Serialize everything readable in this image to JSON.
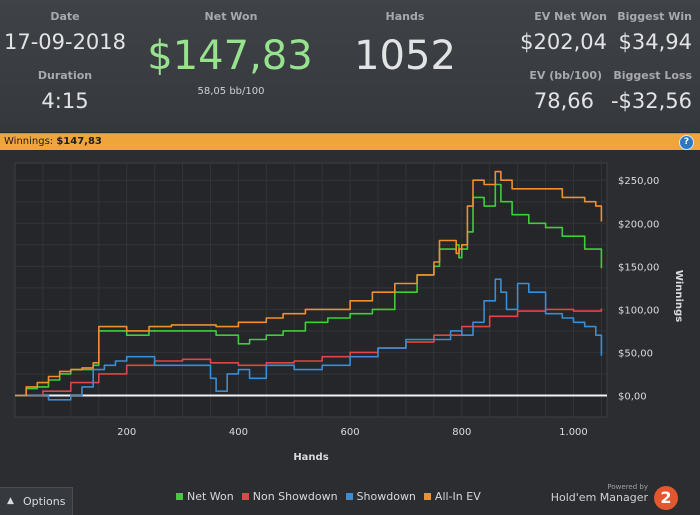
{
  "stats": {
    "date_label": "Date",
    "date_value": "17-09-2018",
    "duration_label": "Duration",
    "duration_value": "4:15",
    "netwon_label": "Net Won",
    "netwon_value": "$147,83",
    "netwon_sub": "58,05 bb/100",
    "hands_label": "Hands",
    "hands_value": "1052",
    "evnet_label": "EV Net Won",
    "evnet_value": "$202,04",
    "evbb_label": "EV (bb/100)",
    "evbb_value": "78,66",
    "bigwin_label": "Biggest Win",
    "bigwin_value": "$34,94",
    "bigloss_label": "Biggest Loss",
    "bigloss_value": "-$32,56"
  },
  "winnings_bar": {
    "label": "Winnings: ",
    "value": "$147,83",
    "help_icon": "?"
  },
  "footer": {
    "options_label": "Options",
    "powered_by": "Powered by",
    "brand": "Hold'em Manager",
    "brand_logo": "2"
  },
  "chart_data": {
    "type": "line",
    "xlabel": "Hands",
    "ylabel": "Winnings",
    "xlim": [
      0,
      1060
    ],
    "ylim": [
      -25,
      270
    ],
    "xticks": [
      200,
      400,
      600,
      800,
      1000
    ],
    "xtick_labels": [
      "200",
      "400",
      "600",
      "800",
      "1.000"
    ],
    "yticks": [
      0,
      50,
      100,
      150,
      200,
      250
    ],
    "ytick_labels": [
      "$0,00",
      "$50,00",
      "$100,00",
      "$150,00",
      "$200,00",
      "$250,00"
    ],
    "grid": true,
    "legend_position": "bottom",
    "series": [
      {
        "name": "Net Won",
        "color": "#3fce3a",
        "x": [
          0,
          20,
          40,
          60,
          80,
          100,
          120,
          140,
          150,
          180,
          200,
          240,
          280,
          320,
          340,
          360,
          380,
          400,
          420,
          450,
          480,
          520,
          560,
          600,
          640,
          680,
          720,
          750,
          760,
          790,
          795,
          800,
          810,
          820,
          840,
          860,
          870,
          890,
          920,
          950,
          980,
          1000,
          1020,
          1040,
          1050
        ],
        "y": [
          0,
          8,
          10,
          18,
          25,
          30,
          30,
          35,
          75,
          75,
          70,
          75,
          75,
          75,
          75,
          70,
          70,
          60,
          65,
          70,
          75,
          85,
          90,
          95,
          100,
          120,
          140,
          150,
          170,
          175,
          160,
          170,
          190,
          230,
          220,
          245,
          225,
          210,
          200,
          195,
          185,
          185,
          170,
          170,
          147.83
        ]
      },
      {
        "name": "Non Showdown",
        "color": "#e04646",
        "x": [
          0,
          50,
          100,
          150,
          200,
          250,
          300,
          350,
          400,
          450,
          500,
          550,
          600,
          650,
          700,
          750,
          800,
          850,
          900,
          950,
          1000,
          1050
        ],
        "y": [
          0,
          5,
          15,
          25,
          35,
          40,
          42,
          38,
          35,
          38,
          40,
          45,
          50,
          55,
          62,
          70,
          80,
          92,
          98,
          100,
          98,
          101
        ]
      },
      {
        "name": "Showdown",
        "color": "#3a8ed6",
        "x": [
          0,
          50,
          60,
          80,
          100,
          120,
          140,
          160,
          180,
          200,
          250,
          300,
          350,
          360,
          380,
          400,
          420,
          450,
          500,
          550,
          600,
          650,
          700,
          750,
          780,
          800,
          820,
          840,
          860,
          870,
          880,
          900,
          920,
          950,
          980,
          1000,
          1020,
          1040,
          1050
        ],
        "y": [
          0,
          0,
          -5,
          -5,
          0,
          10,
          30,
          35,
          40,
          45,
          35,
          35,
          20,
          5,
          25,
          30,
          20,
          35,
          30,
          35,
          45,
          55,
          65,
          65,
          75,
          70,
          85,
          110,
          135,
          120,
          100,
          130,
          120,
          95,
          90,
          85,
          80,
          70,
          46.14
        ]
      },
      {
        "name": "All-In EV",
        "color": "#f08e30",
        "x": [
          0,
          20,
          40,
          60,
          80,
          100,
          120,
          140,
          150,
          180,
          200,
          240,
          280,
          320,
          340,
          360,
          380,
          400,
          420,
          450,
          480,
          520,
          560,
          600,
          640,
          680,
          720,
          750,
          760,
          790,
          795,
          800,
          810,
          820,
          840,
          860,
          870,
          890,
          920,
          950,
          980,
          1000,
          1020,
          1040,
          1050
        ],
        "y": [
          0,
          10,
          15,
          22,
          28,
          30,
          32,
          38,
          80,
          80,
          75,
          80,
          82,
          82,
          82,
          80,
          80,
          85,
          85,
          90,
          95,
          100,
          100,
          110,
          120,
          130,
          140,
          155,
          180,
          165,
          170,
          175,
          220,
          250,
          245,
          260,
          250,
          240,
          240,
          240,
          230,
          230,
          225,
          220,
          202.04
        ]
      }
    ]
  }
}
